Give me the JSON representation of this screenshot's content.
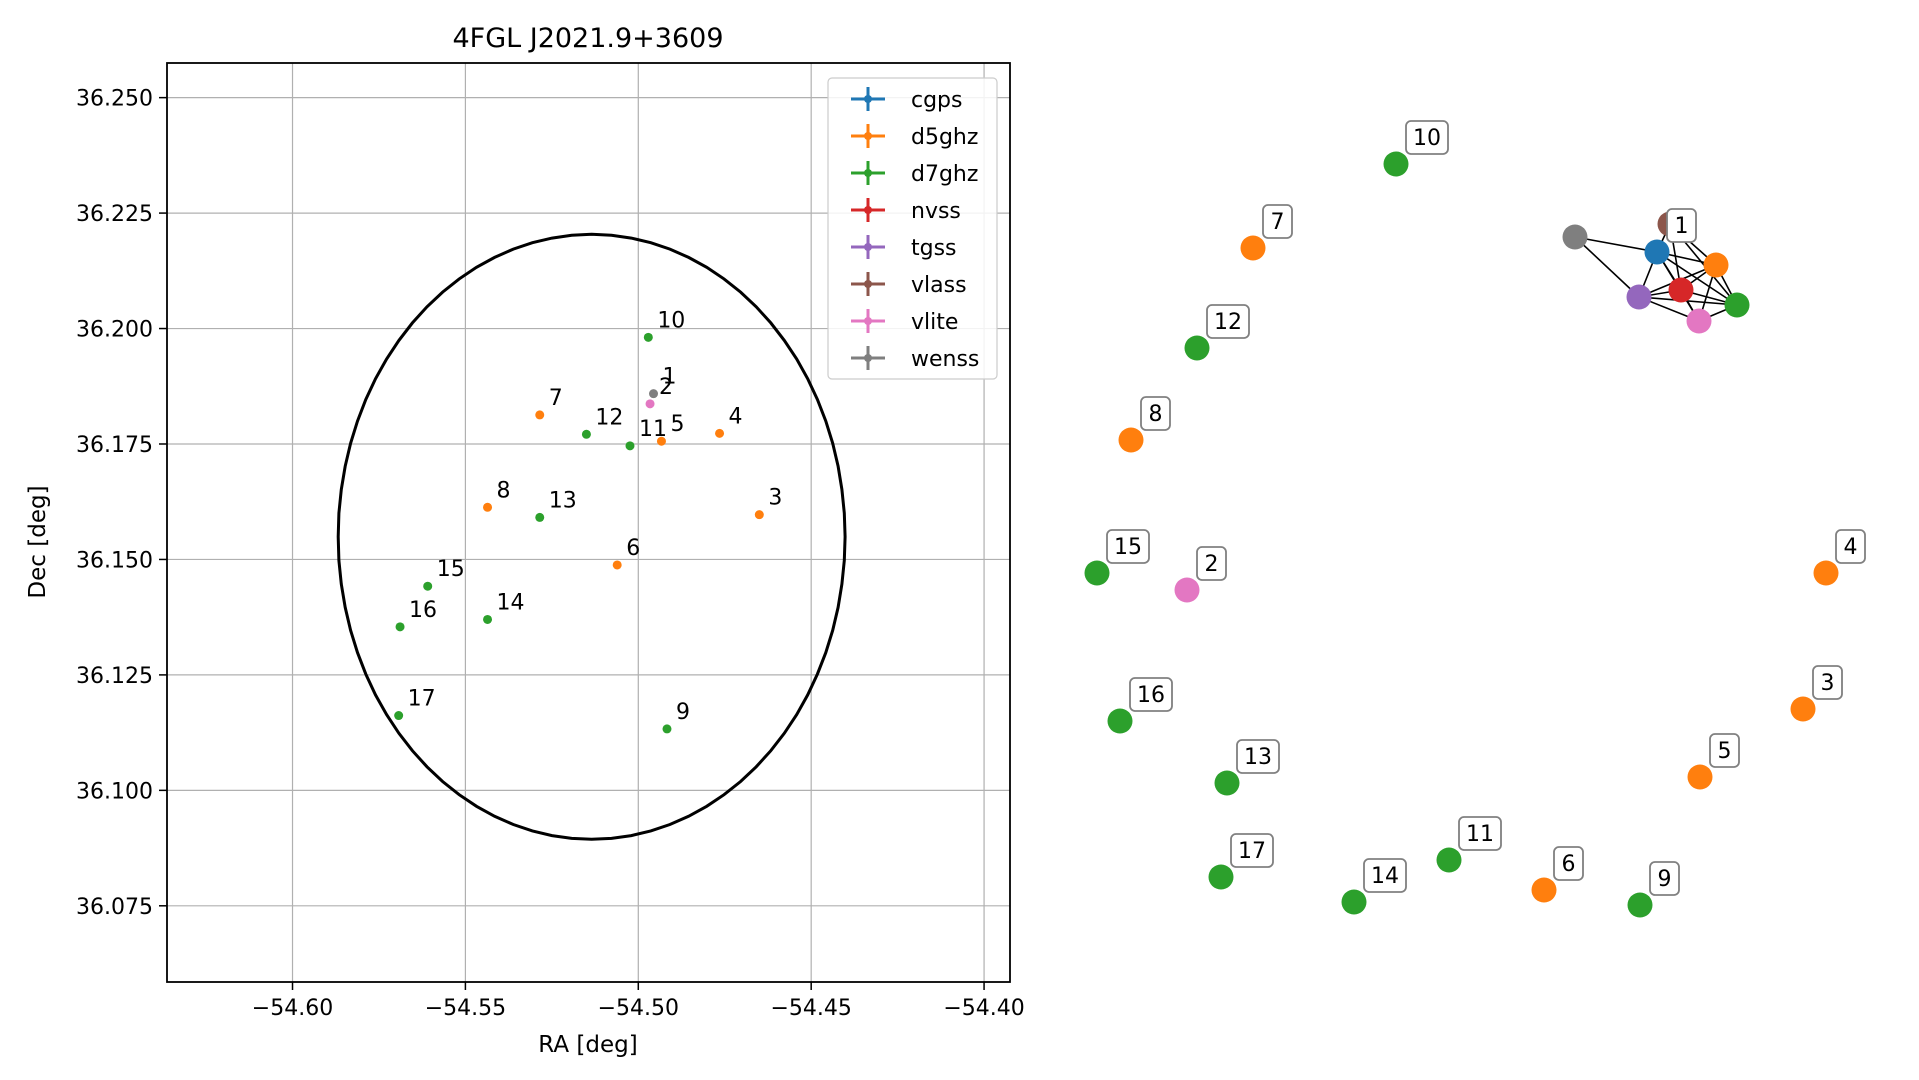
{
  "chart_data": [
    {
      "type": "scatter",
      "title": "4FGL J2021.9+3609",
      "xlabel": "RA [deg]",
      "ylabel": "Dec [deg]",
      "xlim": [
        -54.6363,
        -54.3925
      ],
      "ylim": [
        36.0585,
        36.2575
      ],
      "xticks": [
        -54.6,
        -54.55,
        -54.5,
        -54.45,
        -54.4
      ],
      "xtick_labels": [
        "−54.60",
        "−54.55",
        "−54.50",
        "−54.45",
        "−54.40"
      ],
      "yticks": [
        36.075,
        36.1,
        36.125,
        36.15,
        36.175,
        36.2,
        36.225,
        36.25
      ],
      "ytick_labels": [
        "36.075",
        "36.100",
        "36.125",
        "36.150",
        "36.175",
        "36.200",
        "36.225",
        "36.250"
      ],
      "grid": true,
      "legend_position": "top-right",
      "ellipse": {
        "center": [
          -54.5135,
          36.1549
        ],
        "ra_semi_axis": 0.0733,
        "dec_semi_axis": 0.0655
      },
      "series": [
        {
          "name": "cgps",
          "color": "#1f77b4",
          "points": []
        },
        {
          "name": "d5ghz",
          "color": "#ff7f0e",
          "points": [
            {
              "label": "3",
              "x": -54.465,
              "y": 36.1597
            },
            {
              "label": "4",
              "x": -54.4765,
              "y": 36.1773
            },
            {
              "label": "5",
              "x": -54.4933,
              "y": 36.1756
            },
            {
              "label": "6",
              "x": -54.5061,
              "y": 36.1488
            },
            {
              "label": "7",
              "x": -54.5285,
              "y": 36.1813
            },
            {
              "label": "8",
              "x": -54.5436,
              "y": 36.1613
            }
          ]
        },
        {
          "name": "d7ghz",
          "color": "#2ca02c",
          "points": [
            {
              "label": "9",
              "x": -54.4917,
              "y": 36.1133
            },
            {
              "label": "10",
              "x": -54.4971,
              "y": 36.1981
            },
            {
              "label": "11",
              "x": -54.5024,
              "y": 36.1746
            },
            {
              "label": "12",
              "x": -54.515,
              "y": 36.1771
            },
            {
              "label": "13",
              "x": -54.5285,
              "y": 36.1591
            },
            {
              "label": "14",
              "x": -54.5436,
              "y": 36.137
            },
            {
              "label": "15",
              "x": -54.5609,
              "y": 36.1442
            },
            {
              "label": "16",
              "x": -54.5689,
              "y": 36.1354
            },
            {
              "label": "17",
              "x": -54.5693,
              "y": 36.1162
            }
          ]
        },
        {
          "name": "nvss",
          "color": "#d62728",
          "points": []
        },
        {
          "name": "tgss",
          "color": "#9467bd",
          "points": []
        },
        {
          "name": "vlass",
          "color": "#8c564b",
          "points": []
        },
        {
          "name": "vlite",
          "color": "#e377c2",
          "points": [
            {
              "label": "2",
              "x": -54.4966,
              "y": 36.1837
            }
          ]
        },
        {
          "name": "wenss",
          "color": "#7f7f7f",
          "points": [
            {
              "label": "1",
              "x": -54.4956,
              "y": 36.1859
            }
          ]
        }
      ]
    },
    {
      "type": "network",
      "nodes": [
        {
          "id": "g",
          "color": "#7f7f7f"
        },
        {
          "id": "n",
          "color": "#8c564b"
        },
        {
          "id": "b",
          "color": "#1f77b4",
          "label": "1"
        },
        {
          "id": "o",
          "color": "#ff7f0e"
        },
        {
          "id": "p",
          "color": "#9467bd"
        },
        {
          "id": "r",
          "color": "#d62728"
        },
        {
          "id": "gr",
          "color": "#2ca02c"
        },
        {
          "id": "pk",
          "color": "#e377c2"
        },
        {
          "id": "10",
          "color": "#2ca02c",
          "label": "10"
        },
        {
          "id": "7",
          "color": "#ff7f0e",
          "label": "7"
        },
        {
          "id": "12",
          "color": "#2ca02c",
          "label": "12"
        },
        {
          "id": "8",
          "color": "#ff7f0e",
          "label": "8"
        },
        {
          "id": "15",
          "color": "#2ca02c",
          "label": "15"
        },
        {
          "id": "2",
          "color": "#e377c2",
          "label": "2"
        },
        {
          "id": "4",
          "color": "#ff7f0e",
          "label": "4"
        },
        {
          "id": "3",
          "color": "#ff7f0e",
          "label": "3"
        },
        {
          "id": "16",
          "color": "#2ca02c",
          "label": "16"
        },
        {
          "id": "5",
          "color": "#ff7f0e",
          "label": "5"
        },
        {
          "id": "13",
          "color": "#2ca02c",
          "label": "13"
        },
        {
          "id": "11",
          "color": "#2ca02c",
          "label": "11"
        },
        {
          "id": "17",
          "color": "#2ca02c",
          "label": "17"
        },
        {
          "id": "6",
          "color": "#ff7f0e",
          "label": "6"
        },
        {
          "id": "14",
          "color": "#2ca02c",
          "label": "14"
        },
        {
          "id": "9",
          "color": "#2ca02c",
          "label": "9"
        }
      ],
      "edges": [
        [
          "g",
          "b"
        ],
        [
          "g",
          "p"
        ],
        [
          "n",
          "b"
        ],
        [
          "n",
          "o"
        ],
        [
          "n",
          "r"
        ],
        [
          "n",
          "gr"
        ],
        [
          "b",
          "p"
        ],
        [
          "b",
          "r"
        ],
        [
          "b",
          "o"
        ],
        [
          "b",
          "gr"
        ],
        [
          "b",
          "pk"
        ],
        [
          "p",
          "r"
        ],
        [
          "p",
          "pk"
        ],
        [
          "p",
          "gr"
        ],
        [
          "p",
          "o"
        ],
        [
          "r",
          "o"
        ],
        [
          "r",
          "gr"
        ],
        [
          "r",
          "pk"
        ],
        [
          "o",
          "gr"
        ],
        [
          "o",
          "pk"
        ],
        [
          "gr",
          "pk"
        ]
      ]
    }
  ]
}
